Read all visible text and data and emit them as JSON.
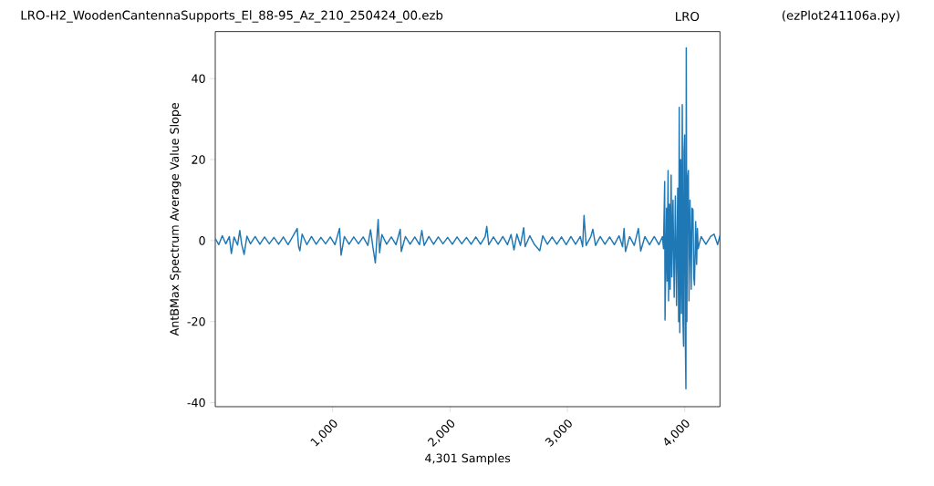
{
  "chart_data": {
    "type": "line",
    "title": "LRO-H2_WoodenCantennaSupports_El_88-95_Az_210_250424_00.ezb",
    "annotations": [
      "LRO",
      "(ezPlot241106a.py)"
    ],
    "xlabel": "4,301 Samples",
    "ylabel": "AntBMax Spectrum Average Value Slope",
    "xlim": [
      0,
      4300
    ],
    "ylim": [
      -41,
      51.6
    ],
    "xticks": [
      {
        "value": 1000,
        "label": "1,000"
      },
      {
        "value": 2000,
        "label": "2,000"
      },
      {
        "value": 3000,
        "label": "3,000"
      },
      {
        "value": 4000,
        "label": "4,000"
      }
    ],
    "yticks": [
      -40,
      -20,
      0,
      20,
      40
    ],
    "series": [
      {
        "color": "#1f77b4",
        "x": [
          0,
          30,
          60,
          90,
          120,
          137,
          160,
          190,
          209,
          225,
          246,
          270,
          300,
          340,
          380,
          420,
          460,
          500,
          540,
          580,
          620,
          660,
          698,
          710,
          721,
          740,
          780,
          820,
          860,
          900,
          940,
          980,
          1020,
          1059,
          1072,
          1100,
          1140,
          1180,
          1220,
          1260,
          1300,
          1323,
          1345,
          1364,
          1380,
          1388,
          1400,
          1420,
          1460,
          1500,
          1540,
          1576,
          1585,
          1620,
          1660,
          1700,
          1740,
          1760,
          1780,
          1820,
          1860,
          1900,
          1940,
          1980,
          2020,
          2060,
          2100,
          2140,
          2180,
          2220,
          2260,
          2300,
          2313,
          2330,
          2370,
          2410,
          2450,
          2490,
          2520,
          2545,
          2570,
          2600,
          2628,
          2640,
          2680,
          2720,
          2765,
          2790,
          2830,
          2870,
          2910,
          2950,
          2990,
          3030,
          3070,
          3110,
          3130,
          3142,
          3160,
          3200,
          3217,
          3240,
          3280,
          3320,
          3360,
          3400,
          3440,
          3470,
          3483,
          3495,
          3530,
          3570,
          3605,
          3625,
          3660,
          3700,
          3740,
          3780,
          3810,
          3819,
          3829,
          3832,
          3845,
          3850,
          3858,
          3862,
          3870,
          3876,
          3884,
          3890,
          3900,
          3910,
          3920,
          3930,
          3940,
          3948,
          3953,
          3958,
          3965,
          3972,
          3979,
          3985,
          3990,
          3994,
          3999,
          4005,
          4010,
          4013,
          4018,
          4024,
          4031,
          4036,
          4045,
          4055,
          4062,
          4070,
          4077,
          4083,
          4093,
          4101,
          4108,
          4114,
          4140,
          4180,
          4220,
          4250,
          4280,
          4300
        ],
        "values": [
          0.5,
          -1.0,
          1.2,
          -0.8,
          1.0,
          -3.2,
          0.9,
          -1.1,
          2.5,
          -0.9,
          -3.4,
          1.1,
          -0.8,
          1.0,
          -0.9,
          0.9,
          -0.8,
          0.8,
          -0.9,
          0.9,
          -1.0,
          1.0,
          3.0,
          -1.5,
          -2.5,
          1.6,
          -1.0,
          1.0,
          -0.9,
          0.8,
          -0.8,
          0.9,
          -1.0,
          3.0,
          -3.6,
          1.0,
          -0.9,
          0.9,
          -0.8,
          0.9,
          -1.2,
          2.7,
          -2.0,
          -5.5,
          2.0,
          5.2,
          -3.0,
          1.5,
          -0.9,
          0.9,
          -1.0,
          2.8,
          -2.7,
          1.0,
          -0.9,
          0.9,
          -1.0,
          2.5,
          -1.2,
          1.0,
          -0.9,
          0.9,
          -0.8,
          0.8,
          -0.9,
          0.9,
          -0.8,
          0.8,
          -0.9,
          0.9,
          -0.9,
          1.0,
          3.5,
          -1.0,
          0.9,
          -0.9,
          1.0,
          -1.0,
          1.5,
          -2.3,
          1.6,
          -1.2,
          3.2,
          -1.5,
          1.2,
          -1.0,
          -2.5,
          1.2,
          -0.9,
          0.9,
          -0.9,
          0.9,
          -1.0,
          1.0,
          -0.9,
          1.0,
          -1.5,
          6.2,
          -1.2,
          1.0,
          2.8,
          -1.2,
          1.0,
          -0.9,
          0.9,
          -1.0,
          1.2,
          -1.5,
          3.0,
          -2.7,
          1.0,
          -1.2,
          3.0,
          -2.6,
          1.0,
          -1.0,
          1.0,
          -1.0,
          1.0,
          -2.0,
          14.6,
          -19.6,
          8.0,
          -10.0,
          17.3,
          -14.9,
          9.0,
          -12.0,
          16.2,
          -9.0,
          10.0,
          -14.0,
          11.0,
          -16.0,
          13.0,
          -20.0,
          32.9,
          -22.7,
          20.0,
          -18.0,
          33.6,
          -20.0,
          -26.1,
          22.0,
          26.1,
          -25.0,
          -36.6,
          47.6,
          -20.0,
          15.0,
          17.3,
          -14.9,
          10.0,
          -12.0,
          8.0,
          7.7,
          -9.0,
          -11.0,
          4.7,
          -5.9,
          3.0,
          -2.0,
          1.0,
          -0.9,
          1.0,
          1.6,
          -1.0,
          1.2
        ]
      }
    ]
  }
}
